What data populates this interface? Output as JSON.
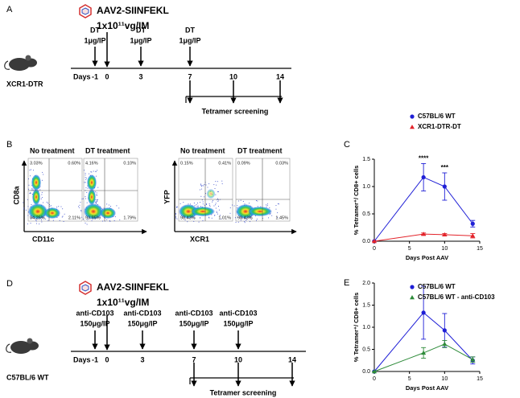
{
  "panel_labels": [
    "A",
    "B",
    "C",
    "D",
    "E"
  ],
  "timelines": [
    {
      "vector": "AAV2-SIINFEKL",
      "dose": "1x10¹¹vg/IM",
      "mouse": "XCR1-DTR",
      "days_label": "Days",
      "days": [
        "-1",
        "0",
        "3",
        "7",
        "10",
        "14"
      ],
      "treatments": [
        [
          "DT",
          "1μg/IP"
        ],
        null,
        [
          "DT",
          "1μg/IP"
        ],
        [
          "DT",
          "1μg/IP"
        ],
        null,
        null
      ],
      "screening": "Tetramer screening"
    },
    {
      "vector": "AAV2-SIINFEKL",
      "dose": "1x10¹¹vg/IM",
      "mouse": "C57BL/6 WT",
      "days_label": "Days",
      "days": [
        "-1",
        "0",
        "3",
        "7",
        "10",
        "14"
      ],
      "treatments": [
        [
          "anti-CD103",
          "150μg/IP"
        ],
        null,
        [
          "anti-CD103",
          "150μg/IP"
        ],
        [
          "anti-CD103",
          "150μg/IP"
        ],
        [
          "anti-CD103",
          "150μg/IP"
        ],
        null
      ],
      "screening": "Tetramer screening"
    }
  ],
  "flow": [
    {
      "x_axis": "CD11c",
      "y_axis": "CD8a",
      "plots": [
        {
          "title": "No treatment",
          "quadrants": [
            "3.03%",
            "0.60%",
            "94.26%",
            "2.11%"
          ]
        },
        {
          "title": "DT treatment",
          "quadrants": [
            "4.16%",
            "0.10%",
            "93.95%",
            "1.79%"
          ]
        }
      ]
    },
    {
      "x_axis": "XCR1",
      "y_axis": "YFP",
      "plots": [
        {
          "title": "No treatment",
          "quadrants": [
            "0.15%",
            "0.41%",
            "98.43%",
            "1.01%"
          ]
        },
        {
          "title": "DT treatment",
          "quadrants": [
            "0.09%",
            "0.03%",
            "98.43%",
            "1.45%"
          ]
        }
      ]
    }
  ],
  "chart_data": [
    {
      "type": "line",
      "xlabel": "Days Post AAV",
      "ylabel": "% Tetramer⁺/ CD8+ cells",
      "x": [
        0,
        7,
        10,
        14
      ],
      "xlim": [
        0,
        15
      ],
      "xticks": [
        0,
        5,
        10,
        15
      ],
      "ylim": [
        0,
        1.5
      ],
      "yticks": [
        {
          "value": 0,
          "label": "0.0"
        },
        {
          "value": 0.5,
          "label": "0.5"
        },
        {
          "value": 1,
          "label": "1.0"
        },
        {
          "value": 1.5,
          "label": "1.5"
        }
      ],
      "series": [
        {
          "name": "C57BL/6 WT",
          "color": "#1f1fd6",
          "marker": "circle",
          "values": [
            0,
            1.17,
            1.0,
            0.32
          ],
          "errors": [
            0,
            0.25,
            0.25,
            0.06
          ]
        },
        {
          "name": "XCR1-DTR-DT",
          "color": "#e3242b",
          "marker": "triangle",
          "values": [
            0,
            0.13,
            0.12,
            0.1
          ],
          "errors": [
            0,
            0.02,
            0.02,
            0.04
          ]
        }
      ],
      "annotations": [
        {
          "text": "****",
          "x": 7
        },
        {
          "text": "***",
          "x": 10
        }
      ]
    },
    {
      "type": "line",
      "xlabel": "Days Post AAV",
      "ylabel": "% Tetramer⁺/ CD8+ cells",
      "x": [
        0,
        7,
        10,
        14
      ],
      "xlim": [
        0,
        15
      ],
      "xticks": [
        0,
        5,
        10,
        15
      ],
      "ylim": [
        0,
        2
      ],
      "yticks": [
        {
          "value": 0,
          "label": "0.0"
        },
        {
          "value": 0.5,
          "label": "0.5"
        },
        {
          "value": 1,
          "label": "1.0"
        },
        {
          "value": 1.5,
          "label": "1.5"
        },
        {
          "value": 2,
          "label": "2.0"
        }
      ],
      "series": [
        {
          "name": "C57BL/6 WT",
          "color": "#1f1fd6",
          "marker": "circle",
          "values": [
            0,
            1.33,
            0.93,
            0.25
          ],
          "errors": [
            0,
            0.6,
            0.38,
            0.08
          ]
        },
        {
          "name": "C57BL/6 WT - anti-CD103",
          "color": "#2e8b3a",
          "marker": "triangle",
          "values": [
            0,
            0.42,
            0.62,
            0.27
          ],
          "errors": [
            0,
            0.12,
            0.08,
            0.06
          ]
        }
      ],
      "annotations": []
    }
  ]
}
